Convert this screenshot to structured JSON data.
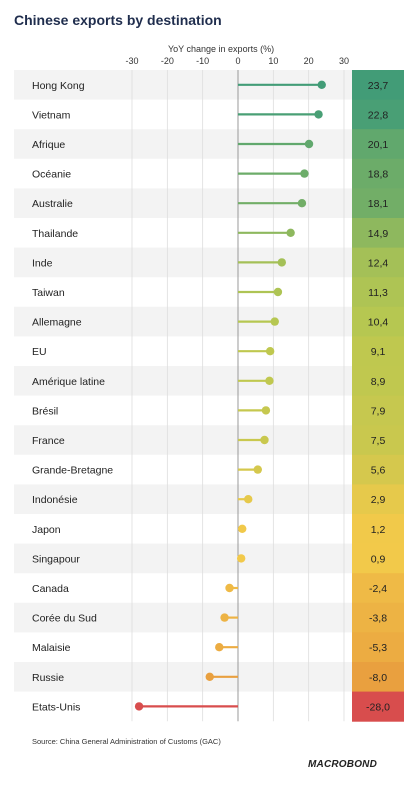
{
  "title": "Chinese exports by destination",
  "source": "Source: China General Administration of Customs (GAC)",
  "brand": "MACROBOND",
  "chart_data": {
    "type": "lollipop",
    "title": "Chinese exports by destination",
    "xlabel": "YoY change in exports (%)",
    "xlim": [
      -30,
      30
    ],
    "xticks": [
      "-30",
      "-20",
      "-10",
      "0",
      "10",
      "20",
      "30"
    ],
    "categories": [
      "Hong Kong",
      "Vietnam",
      "Afrique",
      "Océanie",
      "Australie",
      "Thailande",
      "Inde",
      "Taiwan",
      "Allemagne",
      "EU",
      "Amérique latine",
      "Brésil",
      "France",
      "Grande-Bretagne",
      "Indonésie",
      "Japon",
      "Singapour",
      "Canada",
      "Corée du Sud",
      "Malaisie",
      "Russie",
      "Etats-Unis"
    ],
    "values": [
      23.7,
      22.8,
      20.1,
      18.8,
      18.1,
      14.9,
      12.4,
      11.3,
      10.4,
      9.1,
      8.9,
      7.9,
      7.5,
      5.6,
      2.9,
      1.2,
      0.9,
      -2.4,
      -3.8,
      -5.3,
      -8.0,
      -28.0
    ],
    "value_labels": [
      "23,7",
      "22,8",
      "20,1",
      "18,8",
      "18,1",
      "14,9",
      "12,4",
      "11,3",
      "10,4",
      "9,1",
      "8,9",
      "7,9",
      "7,5",
      "5,6",
      "2,9",
      "1,2",
      "0,9",
      "-2,4",
      "-3,8",
      "-5,3",
      "-8,0",
      "-28,0"
    ],
    "colors": {
      "high": "#3f9b78",
      "mid": "#c9cc4e",
      "neutral": "#f2c94a",
      "low": "#e9a03f",
      "lowest": "#d84d4d",
      "row_band": "#f3f3f3"
    }
  }
}
